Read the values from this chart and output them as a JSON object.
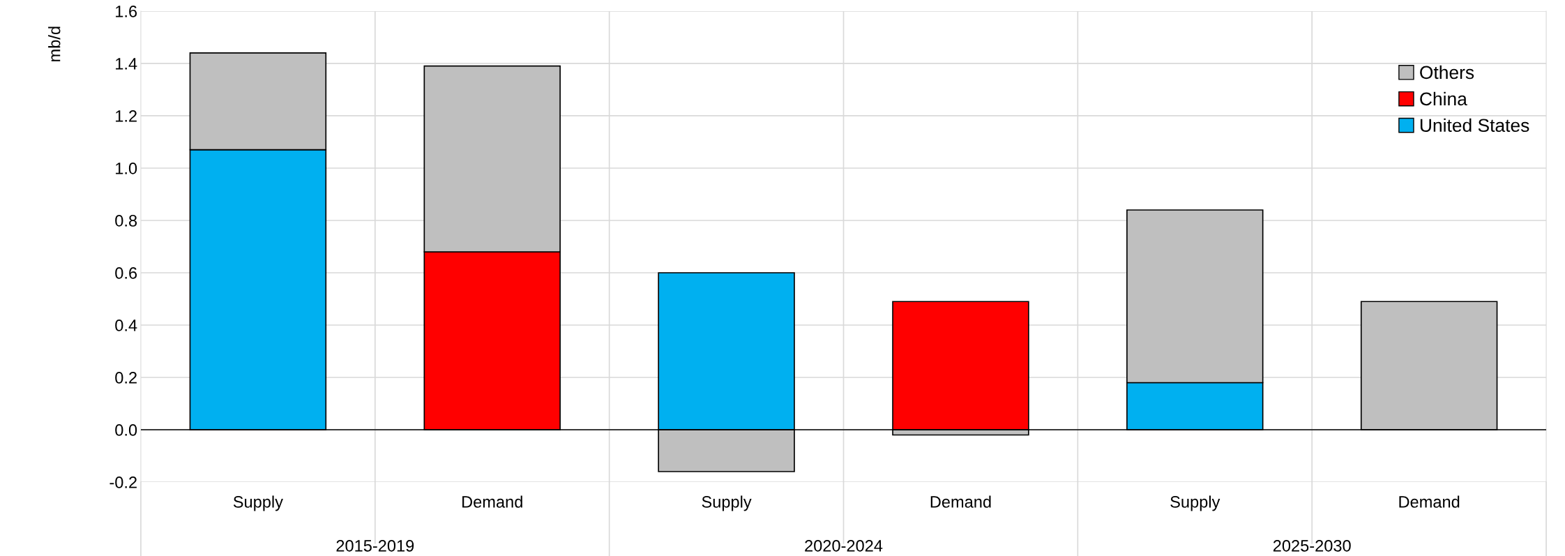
{
  "chart_data": {
    "type": "bar",
    "stacked": true,
    "ylabel": "mb/d",
    "categories": [
      "Supply",
      "Demand",
      "Supply",
      "Demand",
      "Supply",
      "Demand"
    ],
    "annotations": [
      "2015-2019",
      "2020-2024",
      "2025-2030"
    ],
    "series": [
      {
        "name": "United States",
        "color": "#00b0f0",
        "values": [
          1.07,
          null,
          0.6,
          null,
          0.18,
          null
        ]
      },
      {
        "name": "China",
        "color": "#ff0000",
        "values": [
          null,
          0.68,
          null,
          0.49,
          null,
          null
        ]
      },
      {
        "name": "Others",
        "color": "#bfbfbf",
        "values": [
          0.37,
          0.71,
          -0.16,
          -0.02,
          0.66,
          0.49
        ]
      }
    ],
    "ylim": [
      -0.2,
      1.6
    ],
    "yticks": [
      {
        "value": -0.2,
        "label": "-0.2"
      },
      {
        "value": 0,
        "label": "0.0"
      },
      {
        "value": 0.2,
        "label": "0.2"
      },
      {
        "value": 0.4,
        "label": "0.4"
      },
      {
        "value": 0.6,
        "label": "0.6"
      },
      {
        "value": 0.8,
        "label": "0.8"
      },
      {
        "value": 1.0,
        "label": "1.0"
      },
      {
        "value": 1.2,
        "label": "1.2"
      },
      {
        "value": 1.4,
        "label": "1.4"
      },
      {
        "value": 1.6,
        "label": "1.6"
      }
    ],
    "grid": true,
    "legend": "top right"
  }
}
